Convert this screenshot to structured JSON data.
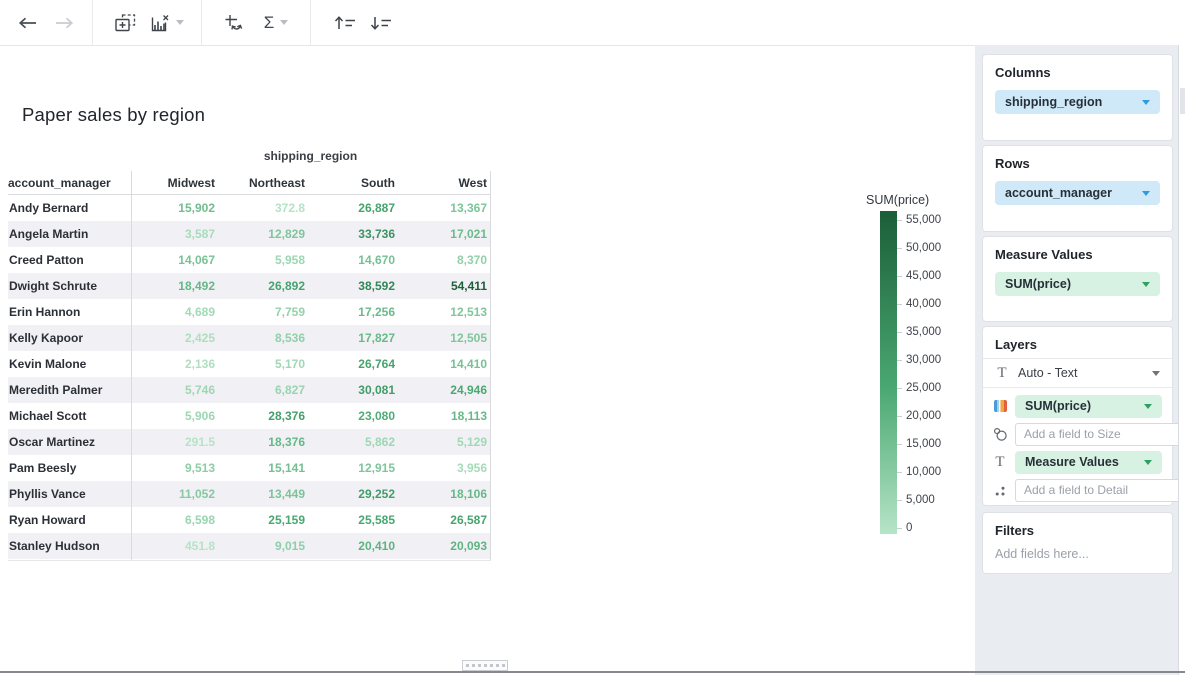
{
  "title": "Paper sales by region",
  "toolbar": {
    "sigma_label": "Σ"
  },
  "table": {
    "column_dimension": "shipping_region",
    "row_dimension": "account_manager",
    "columns": [
      "Midwest",
      "Northeast",
      "South",
      "West"
    ],
    "rows": [
      {
        "name": "Andy Bernard",
        "values": [
          "15,902",
          "372.8",
          "26,887",
          "13,367"
        ]
      },
      {
        "name": "Angela Martin",
        "values": [
          "3,587",
          "12,829",
          "33,736",
          "17,021"
        ]
      },
      {
        "name": "Creed Patton",
        "values": [
          "14,067",
          "5,958",
          "14,670",
          "8,370"
        ]
      },
      {
        "name": "Dwight Schrute",
        "values": [
          "18,492",
          "26,892",
          "38,592",
          "54,411"
        ]
      },
      {
        "name": "Erin Hannon",
        "values": [
          "4,689",
          "7,759",
          "17,256",
          "12,513"
        ]
      },
      {
        "name": "Kelly Kapoor",
        "values": [
          "2,425",
          "8,536",
          "17,827",
          "12,505"
        ]
      },
      {
        "name": "Kevin Malone",
        "values": [
          "2,136",
          "5,170",
          "26,764",
          "14,410"
        ]
      },
      {
        "name": "Meredith Palmer",
        "values": [
          "5,746",
          "6,827",
          "30,081",
          "24,946"
        ]
      },
      {
        "name": "Michael Scott",
        "values": [
          "5,906",
          "28,376",
          "23,080",
          "18,113"
        ]
      },
      {
        "name": "Oscar Martinez",
        "values": [
          "291.5",
          "18,376",
          "5,862",
          "5,129"
        ]
      },
      {
        "name": "Pam Beesly",
        "values": [
          "9,513",
          "15,141",
          "12,915",
          "3,956"
        ]
      },
      {
        "name": "Phyllis Vance",
        "values": [
          "11,052",
          "13,449",
          "29,252",
          "18,106"
        ]
      },
      {
        "name": "Ryan Howard",
        "values": [
          "6,598",
          "25,159",
          "25,585",
          "26,587"
        ]
      },
      {
        "name": "Stanley Hudson",
        "values": [
          "451.8",
          "9,015",
          "20,410",
          "20,093"
        ]
      }
    ]
  },
  "legend": {
    "title": "SUM(price)",
    "ticks": [
      "55,000",
      "50,000",
      "45,000",
      "40,000",
      "35,000",
      "30,000",
      "25,000",
      "20,000",
      "15,000",
      "10,000",
      "5,000",
      "0"
    ],
    "max_value": 55000,
    "gradient": [
      "#b7e4c7",
      "#4aa872",
      "#1b5e38"
    ],
    "gradient_mid": 0.45
  },
  "panel": {
    "columns": {
      "title": "Columns",
      "field": "shipping_region"
    },
    "rows": {
      "title": "Rows",
      "field": "account_manager"
    },
    "measure_values": {
      "title": "Measure Values",
      "field": "SUM(price)"
    },
    "layers": {
      "title": "Layers",
      "mark_type": "Auto - Text",
      "color_field": "SUM(price)",
      "size_placeholder": "Add a field to Size",
      "text_field": "Measure Values",
      "detail_placeholder": "Add a field to Detail"
    },
    "filters": {
      "title": "Filters",
      "placeholder": "Add fields here..."
    }
  },
  "colors": {
    "dimension_pill": "#cfe9f8",
    "dimension_accent": "#2d9cdb",
    "measure_pill": "#d7f2e2",
    "measure_accent": "#2fa063",
    "heatmap_low": "#b7e4c7",
    "heatmap_high": "#1b5e38",
    "panel_background": "#e9edf1"
  }
}
